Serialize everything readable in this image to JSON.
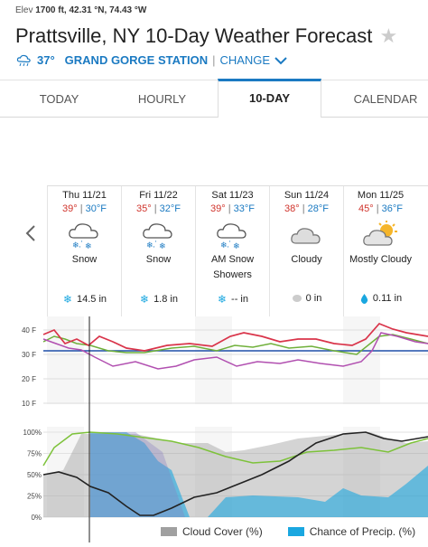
{
  "location": {
    "elev_label": "Elev",
    "elev_value": "1700 ft,",
    "coords": "42.31 °N, 74.43 °W",
    "title": "Prattsville, NY 10-Day Weather Forecast",
    "current_temp": "37°",
    "station": "GRAND GORGE STATION",
    "separator": "|",
    "change_label": "CHANGE"
  },
  "tabs": [
    {
      "label": "TODAY"
    },
    {
      "label": "HOURLY"
    },
    {
      "label": "10-DAY"
    },
    {
      "label": "CALENDAR"
    }
  ],
  "active_tab": "10-DAY",
  "days": [
    {
      "name": "Thu 11/21",
      "hi": "39°",
      "lo": "30°F",
      "cond": "Snow",
      "icon": "snow-icon",
      "precip": "14.5 in",
      "precip_icon": "snowflake-icon"
    },
    {
      "name": "Fri 11/22",
      "hi": "35°",
      "lo": "32°F",
      "cond": "Snow",
      "icon": "snow-icon",
      "precip": "1.8 in",
      "precip_icon": "snowflake-icon"
    },
    {
      "name": "Sat 11/23",
      "hi": "39°",
      "lo": "33°F",
      "cond": "AM Snow Showers",
      "icon": "snow-icon",
      "precip": "-- in",
      "precip_icon": "snowflake-icon"
    },
    {
      "name": "Sun 11/24",
      "hi": "38°",
      "lo": "28°F",
      "cond": "Cloudy",
      "icon": "cloud-icon",
      "precip": "0 in",
      "precip_icon": "raindrop-icon"
    },
    {
      "name": "Mon 11/25",
      "hi": "45°",
      "lo": "36°F",
      "cond": "Mostly Cloudy",
      "icon": "sun-cloud-icon",
      "precip": "0.11 in",
      "precip_icon": "raindrop-icon"
    }
  ],
  "temp_chart": {
    "y_ticks": [
      "40 F",
      "30 F",
      "20 F",
      "10 F"
    ]
  },
  "cloud_chart": {
    "y_ticks": [
      "100%",
      "75%",
      "50%",
      "25%",
      "0%"
    ]
  },
  "legend": {
    "cloud_cover": "Cloud Cover (%)",
    "precip_chance": "Chance of Precip. (%)"
  },
  "colors": {
    "accent": "#1b7ac2",
    "hi_temp": "#d0342c",
    "lo_temp": "#1b7ac2",
    "temp_line": "#d9344a",
    "dewpoint_line": "#6fb03a",
    "feels_line": "#b14fb0",
    "freeze_line": "#1f4fa8",
    "cloud_fill": "#a0a0a0",
    "precip_fill": "#1aa7e0"
  }
}
